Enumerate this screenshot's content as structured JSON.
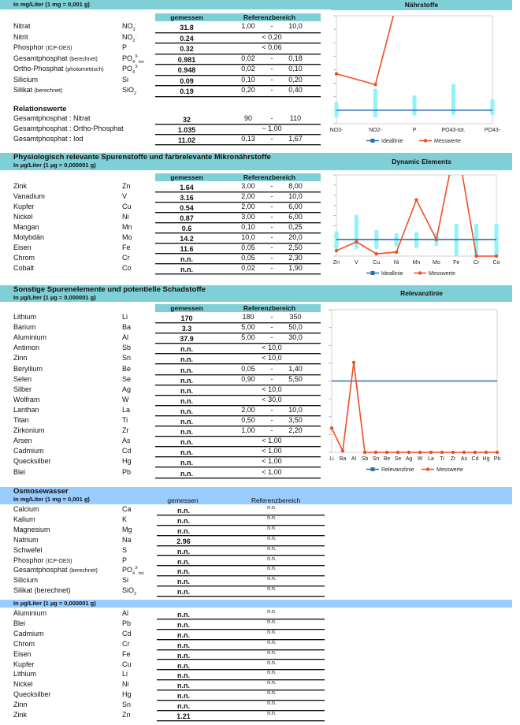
{
  "section1": {
    "unit": "In mg/Liter (1 mg = 0,001 g)",
    "col_measured": "gemessen",
    "col_reference": "Referenzbereich",
    "rows": [
      {
        "name": "Nitrat",
        "note": "",
        "sym": "NO",
        "sub": "3",
        "sup": "-",
        "value": "31.8",
        "low": "1,00",
        "dash": "-",
        "high": "10,0"
      },
      {
        "name": "Nitrit",
        "note": "",
        "sym": "NO",
        "sub": "2",
        "sup": "-",
        "value": "0.24",
        "ref": "< 0,20"
      },
      {
        "name": "Phosphor",
        "note": "(ICP-OES)",
        "sym": "P",
        "value": "0.32",
        "ref": "< 0,06"
      },
      {
        "name": "Gesamtphosphat",
        "note": "(berechnet)",
        "sym": "PO",
        "sub": "4",
        "sup": "3-",
        "tail": "tot.",
        "value": "0.981",
        "low": "0,02",
        "dash": "-",
        "high": "0,18"
      },
      {
        "name": "Ortho-Phosphat",
        "note": "(photometrisch)",
        "sym": "PO",
        "sub": "4",
        "sup": "3-",
        "value": "0.948",
        "low": "0,02",
        "dash": "-",
        "high": "0,10"
      },
      {
        "name": "Silicium",
        "note": "",
        "sym": "Si",
        "value": "0.09",
        "low": "0,10",
        "dash": "-",
        "high": "0,20"
      },
      {
        "name": "Silikat",
        "note": "(berechnet)",
        "sym": "SiO",
        "sub": "2",
        "value": "0.19",
        "low": "0,20",
        "dash": "-",
        "high": "0,40"
      }
    ],
    "relations_title": "Relationswerte",
    "relations": [
      {
        "name": "Gesamtphosphat : Nitrat",
        "value": "32",
        "low": "90",
        "dash": "-",
        "high": "110"
      },
      {
        "name": "Gesamtphosphat : Ortho-Phosphat",
        "value": "1.035",
        "ref": "~ 1,00"
      },
      {
        "name": "Gesamtphosphat : Iod",
        "value": "11.02",
        "low": "0,13",
        "dash": "-",
        "high": "1,67"
      }
    ]
  },
  "section2": {
    "title": "Physiologisch relevante Spurenstoffe und farbrelevante Mikronährstoffe",
    "unit": "In µg/Liter (1 µg = 0,000001 g)",
    "col_measured": "gemessen",
    "col_reference": "Referenzbereich",
    "rows": [
      {
        "name": "Zink",
        "sym": "Zn",
        "value": "1.64",
        "low": "3,00",
        "dash": "-",
        "high": "8,00"
      },
      {
        "name": "Vanadium",
        "sym": "V",
        "value": "3.16",
        "low": "2,00",
        "dash": "-",
        "high": "10,0"
      },
      {
        "name": "Kupfer",
        "sym": "Cu",
        "value": "0.54",
        "low": "2,00",
        "dash": "-",
        "high": "6,00"
      },
      {
        "name": "Nickel",
        "sym": "Ni",
        "value": "0.87",
        "low": "3,00",
        "dash": "-",
        "high": "6,00"
      },
      {
        "name": "Mangan",
        "sym": "Mn",
        "value": "0.6",
        "low": "0,10",
        "dash": "-",
        "high": "0,25"
      },
      {
        "name": "Molybdän",
        "sym": "Mo",
        "value": "14.2",
        "low": "10,0",
        "dash": "-",
        "high": "20,0"
      },
      {
        "name": "Eisen",
        "sym": "Fe",
        "value": "11.6",
        "low": "0,05",
        "dash": "-",
        "high": "2,50"
      },
      {
        "name": "Chrom",
        "sym": "Cr",
        "value": "n.n.",
        "low": "0,05",
        "dash": "-",
        "high": "2,30"
      },
      {
        "name": "Cobalt",
        "sym": "Co",
        "value": "n.n.",
        "low": "0,02",
        "dash": "-",
        "high": "1,90"
      }
    ]
  },
  "section3": {
    "title": "Sonstige Spurenelemente und potentielle Schadstoffe",
    "unit": "In µg/Liter (1 µg = 0,000001 g)",
    "col_measured": "gemessen",
    "col_reference": "Referenzbereich",
    "rows": [
      {
        "name": "Lithium",
        "sym": "Li",
        "value": "170",
        "low": "180",
        "dash": "-",
        "high": "350"
      },
      {
        "name": "Barium",
        "sym": "Ba",
        "value": "3.3",
        "low": "5,00",
        "dash": "-",
        "high": "50,0"
      },
      {
        "name": "Aluminium",
        "sym": "Al",
        "value": "37.9",
        "low": "5,00",
        "dash": "-",
        "high": "30,0"
      },
      {
        "name": "Antimon",
        "sym": "Sb",
        "value": "n.n.",
        "ref": "< 10,0"
      },
      {
        "name": "Zinn",
        "sym": "Sn",
        "value": "n.n.",
        "ref": "< 10,0"
      },
      {
        "name": "Beryllium",
        "sym": "Be",
        "value": "n.n.",
        "low": "0,05",
        "dash": "-",
        "high": "1,40"
      },
      {
        "name": "Selen",
        "sym": "Se",
        "value": "n.n.",
        "low": "0,90",
        "dash": "-",
        "high": "5,50"
      },
      {
        "name": "Silber",
        "sym": "Ag",
        "value": "n.n.",
        "ref": "< 10,0"
      },
      {
        "name": "Wolfram",
        "sym": "W",
        "value": "n.n.",
        "ref": "< 30,0"
      },
      {
        "name": "Lanthan",
        "sym": "La",
        "value": "n.n.",
        "low": "2,00",
        "dash": "-",
        "high": "10,0"
      },
      {
        "name": "Titan",
        "sym": "Ti",
        "value": "n.n.",
        "low": "0,50",
        "dash": "-",
        "high": "3,50"
      },
      {
        "name": "Zirkonium",
        "sym": "Zr",
        "value": "n.n.",
        "low": "1,00",
        "dash": "-",
        "high": "2,20"
      },
      {
        "name": "Arsen",
        "sym": "As",
        "value": "n.n.",
        "ref": "< 1,00"
      },
      {
        "name": "Cadmium",
        "sym": "Cd",
        "value": "n.n.",
        "ref": "< 1,00"
      },
      {
        "name": "Quecksilber",
        "sym": "Hg",
        "value": "n.n.",
        "ref": "< 1,00"
      },
      {
        "name": "Blei",
        "sym": "Pb",
        "value": "n.n.",
        "ref": "< 1,00"
      }
    ]
  },
  "section4": {
    "title": "Osmosewasser",
    "unit": "In mg/Liter (1 mg = 0,001 g)",
    "col_measured": "gemessen",
    "col_reference": "Referenzbereich",
    "rows": [
      {
        "name": "Calcium",
        "sym": "Ca",
        "value": "n.n.",
        "ref": "n.n."
      },
      {
        "name": "Kalium",
        "sym": "K",
        "value": "n.n.",
        "ref": "n.n."
      },
      {
        "name": "Magnesium",
        "sym": "Mg",
        "value": "n.n.",
        "ref": "n.n."
      },
      {
        "name": "Natrium",
        "sym": "Na",
        "value": "2.96",
        "ref": "n.n."
      },
      {
        "name": "Schwefel",
        "sym": "S",
        "value": "n.n.",
        "ref": "n.n."
      },
      {
        "name": "Phosphor",
        "note": "(ICP-OES)",
        "sym": "P",
        "value": "n.n.",
        "ref": "n.n."
      },
      {
        "name": "Gesamtphosphat",
        "note": "(berechnet)",
        "sym": "PO",
        "sub": "4",
        "sup": "3-",
        "tail": "tot.",
        "value": "n.n.",
        "ref": "n.n."
      },
      {
        "name": "Silicium",
        "sym": "Si",
        "value": "n.n.",
        "ref": "n.n."
      },
      {
        "name": "Silikat (berechnet)",
        "sym": "SiO",
        "sub": "2",
        "value": "n.n.",
        "ref": "n.n."
      }
    ],
    "unit2": "In µg/Liter (1 µg = 0,000001 g)",
    "rows2": [
      {
        "name": "Aluminium",
        "sym": "Al",
        "value": "n.n.",
        "ref": "n.n."
      },
      {
        "name": "Blei",
        "sym": "Pb",
        "value": "n.n.",
        "ref": "n.n."
      },
      {
        "name": "Cadmium",
        "sym": "Cd",
        "value": "n.n.",
        "ref": "n.n."
      },
      {
        "name": "Chrom",
        "sym": "Cr",
        "value": "n.n.",
        "ref": "n.n."
      },
      {
        "name": "Eisen",
        "sym": "Fe",
        "value": "n.n.",
        "ref": "n.n."
      },
      {
        "name": "Kupfer",
        "sym": "Cu",
        "value": "n.n.",
        "ref": "n.n."
      },
      {
        "name": "Lithium",
        "sym": "Li",
        "value": "n.n.",
        "ref": "n.n."
      },
      {
        "name": "Nickel",
        "sym": "Ni",
        "value": "n.n.",
        "ref": "n.n."
      },
      {
        "name": "Quecksilber",
        "sym": "Hg",
        "value": "n.n.",
        "ref": "n.n."
      },
      {
        "name": "Zinn",
        "sym": "Sn",
        "value": "n.n.",
        "ref": "n.n."
      },
      {
        "name": "Zink",
        "sym": "Zn",
        "value": "1.21",
        "ref": "n.n."
      }
    ]
  },
  "colors": {
    "header": "#7fcfd6",
    "osmose_header": "#99ccff",
    "ideal": "#2e6db4",
    "measured": "#f04e23",
    "range": "#8ff3fb"
  },
  "chart_data": [
    {
      "type": "line",
      "title": "Nährstoffe",
      "categories": [
        "NO3-",
        "NO2-",
        "P",
        "PO43-tot.",
        "PO43-"
      ],
      "ylim": [
        0,
        8
      ],
      "grid": false,
      "legend": "bottom",
      "series": [
        {
          "name": "Ideallinie",
          "values": [
            1,
            1,
            1,
            1,
            1
          ]
        },
        {
          "name": "Messwerte",
          "values": [
            3.7,
            2.9,
            14,
            null,
            null
          ]
        }
      ],
      "ranges": [
        [
          0.5,
          1.6
        ],
        [
          0.5,
          2.6
        ],
        [
          0.6,
          2.1
        ],
        [
          0.65,
          2.95
        ],
        [
          0.65,
          1.8
        ]
      ]
    },
    {
      "type": "line",
      "title": "Dynamic Elements",
      "categories": [
        "Zn",
        "V",
        "Cu",
        "Ni",
        "Mn",
        "Mo",
        "Fe",
        "Cr",
        "Co"
      ],
      "ylim": [
        0,
        4.9
      ],
      "grid": false,
      "legend": "bottom",
      "series": [
        {
          "name": "Ideallinie",
          "values": [
            1,
            1,
            1,
            1,
            1,
            1,
            1,
            1,
            1
          ]
        },
        {
          "name": "Messwerte",
          "values": [
            0.33,
            0.86,
            0.14,
            0.24,
            3.4,
            1.0,
            7,
            0,
            0
          ]
        }
      ],
      "ranges": [
        [
          0.43,
          1.5
        ],
        [
          0.43,
          2.5
        ],
        [
          0.43,
          1.57
        ],
        [
          0.57,
          1.38
        ],
        [
          0.5,
          1.45
        ],
        [
          0.62,
          1.4
        ],
        [
          0,
          1.95
        ],
        [
          0,
          1.95
        ],
        [
          0,
          1.95
        ]
      ]
    },
    {
      "type": "line",
      "title": "Relevanzlinie",
      "categories": [
        "Li",
        "Ba",
        "Al",
        "Sb",
        "Sn",
        "Be",
        "Se",
        "Ag",
        "W",
        "La",
        "Ti",
        "Zr",
        "As",
        "Cd",
        "Hg",
        "Pb"
      ],
      "ylim": [
        0,
        2
      ],
      "grid": false,
      "legend": "bottom",
      "series": [
        {
          "name": "Relevanzlinie",
          "values": [
            1,
            1,
            1,
            1,
            1,
            1,
            1,
            1,
            1,
            1,
            1,
            1,
            1,
            1,
            1,
            1
          ]
        },
        {
          "name": "Messwerte",
          "values": [
            0.34,
            0.02,
            1.26,
            0,
            0,
            0,
            0,
            0,
            0,
            0,
            0,
            0,
            0,
            0,
            0,
            0
          ]
        }
      ]
    }
  ]
}
